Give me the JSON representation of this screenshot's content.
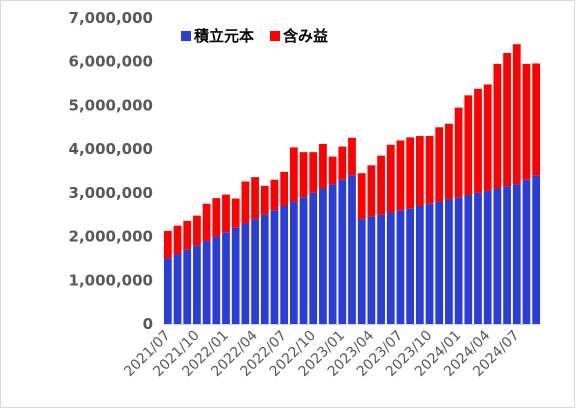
{
  "chart_data": {
    "type": "bar",
    "stacked": true,
    "legend": {
      "placement": "top-left"
    },
    "grid": false,
    "ylim": [
      0,
      7000000
    ],
    "yticks": [
      "0",
      "1,000,000",
      "2,000,000",
      "3,000,000",
      "4,000,000",
      "5,000,000",
      "6,000,000",
      "7,000,000"
    ],
    "xtick_labels": [
      {
        "index": 0,
        "label": "2021/07"
      },
      {
        "index": 3,
        "label": "2021/10"
      },
      {
        "index": 6,
        "label": "2022/01"
      },
      {
        "index": 9,
        "label": "2022/04"
      },
      {
        "index": 12,
        "label": "2022/07"
      },
      {
        "index": 15,
        "label": "2022/10"
      },
      {
        "index": 18,
        "label": "2023/01"
      },
      {
        "index": 21,
        "label": "2023/04"
      },
      {
        "index": 24,
        "label": "2023/07"
      },
      {
        "index": 27,
        "label": "2023/10"
      },
      {
        "index": 30,
        "label": "2024/01"
      },
      {
        "index": 33,
        "label": "2024/04"
      },
      {
        "index": 36,
        "label": "2024/07"
      }
    ],
    "categories": [
      "2021/07",
      "2021/08",
      "2021/09",
      "2021/10",
      "2021/11",
      "2021/12",
      "2022/01",
      "2022/02",
      "2022/03",
      "2022/04",
      "2022/05",
      "2022/06",
      "2022/07",
      "2022/08",
      "2022/09",
      "2022/10",
      "2022/11",
      "2022/12",
      "2023/01",
      "2023/02",
      "2023/03",
      "2023/04",
      "2023/05",
      "2023/06",
      "2023/07",
      "2023/08",
      "2023/09",
      "2023/10",
      "2023/11",
      "2023/12",
      "2024/01",
      "2024/02",
      "2024/03",
      "2024/04",
      "2024/05",
      "2024/06",
      "2024/07",
      "2024/08",
      "2024/09"
    ],
    "series": [
      {
        "name": "積立元本",
        "color": "#2a3ed6",
        "values": [
          1500000,
          1600000,
          1700000,
          1800000,
          1900000,
          2000000,
          2100000,
          2200000,
          2300000,
          2400000,
          2500000,
          2600000,
          2700000,
          2800000,
          2900000,
          3000000,
          3100000,
          3200000,
          3300000,
          3400000,
          2400000,
          2450000,
          2500000,
          2550000,
          2600000,
          2650000,
          2700000,
          2750000,
          2800000,
          2850000,
          2900000,
          2950000,
          3000000,
          3050000,
          3100000,
          3150000,
          3200000,
          3300000,
          3400000
        ]
      },
      {
        "name": "含み益",
        "color": "#ff0000",
        "values": [
          630000,
          650000,
          660000,
          680000,
          850000,
          880000,
          860000,
          670000,
          960000,
          960000,
          660000,
          700000,
          780000,
          1240000,
          1030000,
          930000,
          1020000,
          630000,
          760000,
          860000,
          1050000,
          1180000,
          1350000,
          1550000,
          1600000,
          1620000,
          1600000,
          1550000,
          1700000,
          1730000,
          2050000,
          2280000,
          2380000,
          2430000,
          2850000,
          3050000,
          3200000,
          2650000,
          2560000
        ]
      }
    ]
  }
}
